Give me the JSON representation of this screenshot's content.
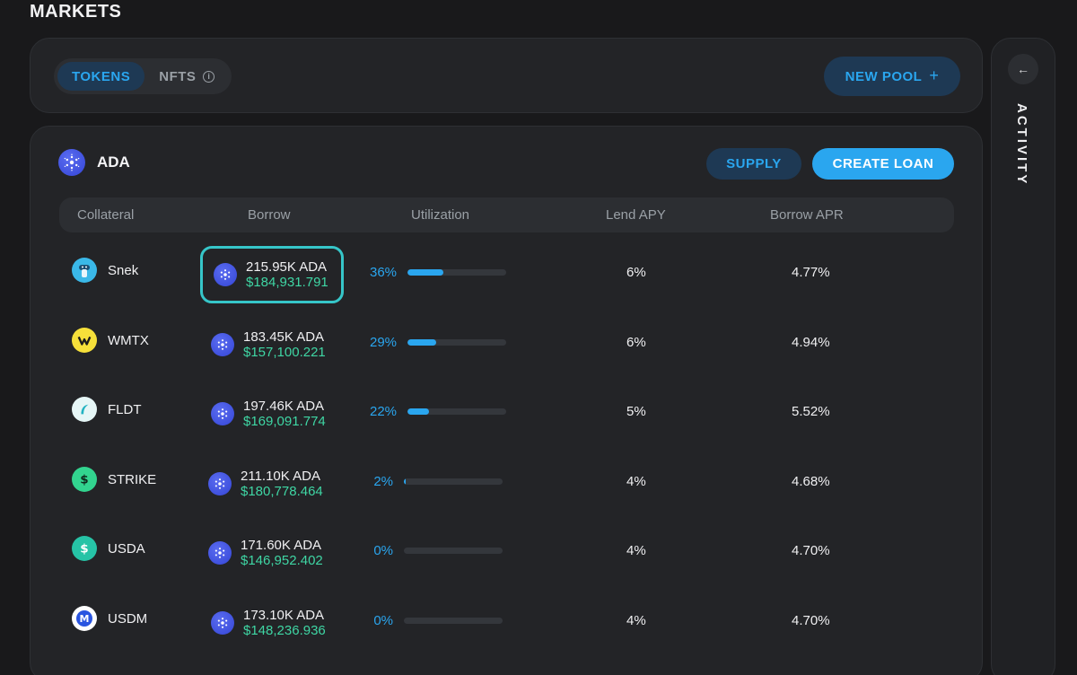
{
  "page": {
    "title": "MARKETS"
  },
  "tabs": [
    {
      "label": "TOKENS",
      "active": true
    },
    {
      "label": "NFTS",
      "active": false,
      "icon": "info-icon"
    }
  ],
  "new_pool": {
    "label": "NEW POOL",
    "icon": "plus-icon"
  },
  "activity": {
    "label": "ACTIVITY",
    "collapse_icon": "arrow-left-icon"
  },
  "pool": {
    "name": "ADA",
    "icon": "cardano-icon",
    "supply_label": "SUPPLY",
    "create_loan_label": "CREATE LOAN"
  },
  "table": {
    "headers": [
      "Collateral",
      "Borrow",
      "Utilization",
      "Lend APY",
      "Borrow APR"
    ],
    "rows": [
      {
        "collateral": "Snek",
        "icon": "snek-icon",
        "borrow_amount": "215.95K ADA",
        "borrow_usd": "$184,931.791",
        "utilization": "36%",
        "utilization_fraction": 0.36,
        "lend_apy": "6%",
        "borrow_apr": "4.77%",
        "highlighted": true
      },
      {
        "collateral": "WMTX",
        "icon": "wmtx-icon",
        "borrow_amount": "183.45K ADA",
        "borrow_usd": "$157,100.221",
        "utilization": "29%",
        "utilization_fraction": 0.29,
        "lend_apy": "6%",
        "borrow_apr": "4.94%",
        "highlighted": false
      },
      {
        "collateral": "FLDT",
        "icon": "fldt-icon",
        "borrow_amount": "197.46K ADA",
        "borrow_usd": "$169,091.774",
        "utilization": "22%",
        "utilization_fraction": 0.22,
        "lend_apy": "5%",
        "borrow_apr": "5.52%",
        "highlighted": false
      },
      {
        "collateral": "STRIKE",
        "icon": "strike-icon",
        "borrow_amount": "211.10K ADA",
        "borrow_usd": "$180,778.464",
        "utilization": "2%",
        "utilization_fraction": 0.02,
        "lend_apy": "4%",
        "borrow_apr": "4.68%",
        "highlighted": false
      },
      {
        "collateral": "USDA",
        "icon": "usda-icon",
        "borrow_amount": "171.60K ADA",
        "borrow_usd": "$146,952.402",
        "utilization": "0%",
        "utilization_fraction": 0.0,
        "lend_apy": "4%",
        "borrow_apr": "4.70%",
        "highlighted": false
      },
      {
        "collateral": "USDM",
        "icon": "usdm-icon",
        "borrow_amount": "173.10K ADA",
        "borrow_usd": "$148,236.936",
        "utilization": "0%",
        "utilization_fraction": 0.0,
        "lend_apy": "4%",
        "borrow_apr": "4.70%",
        "highlighted": false
      }
    ]
  },
  "colors": {
    "accent": "#2aa6ef",
    "positive": "#3fd6a4",
    "highlight_border": "#36c6c9",
    "background": "#19191b"
  }
}
